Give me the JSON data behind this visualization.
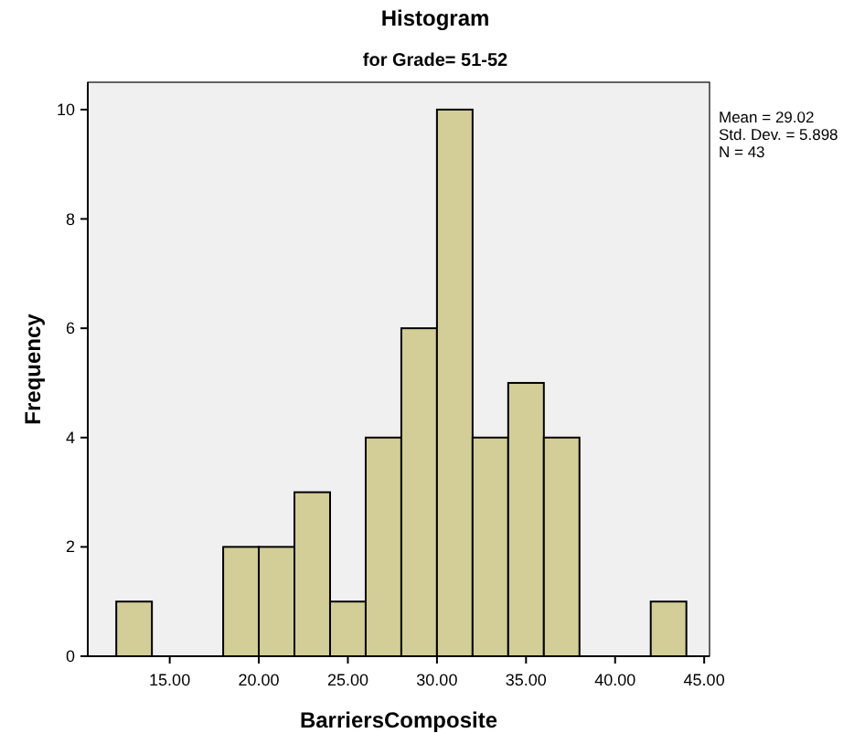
{
  "chart_data": {
    "type": "histogram",
    "title": "Histogram",
    "subtitle": "for Grade= 51-52",
    "xlabel": "BarriersComposite",
    "ylabel": "Frequency",
    "bins": [
      12,
      14,
      16,
      18,
      20,
      22,
      24,
      26,
      28,
      30,
      32,
      34,
      36,
      38,
      40,
      42,
      44
    ],
    "values": [
      1,
      0,
      0,
      2,
      2,
      3,
      1,
      4,
      6,
      10,
      4,
      5,
      4,
      0,
      0,
      1
    ],
    "color": "#d3ce97",
    "xlim": [
      10.4,
      45.3
    ],
    "ylim": [
      0,
      10.5
    ],
    "xticks": [
      {
        "value": 15,
        "label": "15.00"
      },
      {
        "value": 20,
        "label": "20.00"
      },
      {
        "value": 25,
        "label": "25.00"
      },
      {
        "value": 30,
        "label": "30.00"
      },
      {
        "value": 35,
        "label": "35.00"
      },
      {
        "value": 40,
        "label": "40.00"
      },
      {
        "value": 45,
        "label": "45.00"
      }
    ],
    "yticks": [
      0,
      2,
      4,
      6,
      8,
      10
    ],
    "annotations": [
      "Mean = 29.02",
      "Std. Dev. = 5.898",
      "N = 43"
    ]
  }
}
